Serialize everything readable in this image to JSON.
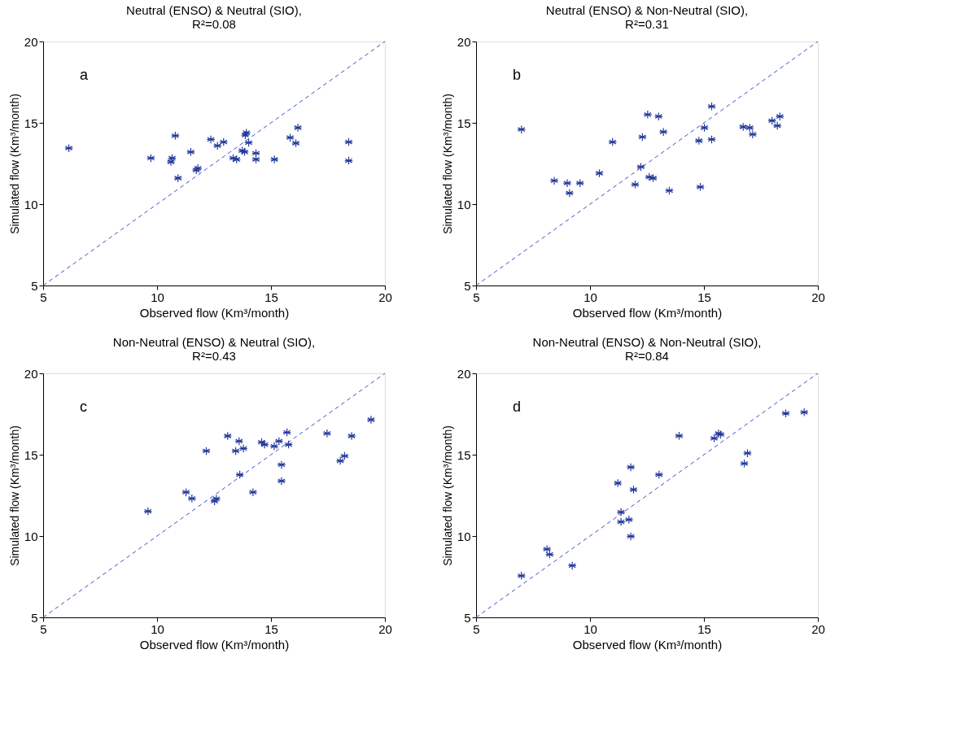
{
  "chart_data": [
    {
      "type": "scatter",
      "title": "Neutral (ENSO) & Neutral (SIO),",
      "subtitle": "R²=0.08",
      "xlabel": "Observed flow (Km³/month)",
      "ylabel": "Simulated flow (Km³/month)",
      "xlim": [
        5,
        20
      ],
      "ylim": [
        5,
        20
      ],
      "xticks": [
        5,
        10,
        15,
        20
      ],
      "yticks": [
        5,
        10,
        15,
        20
      ],
      "grid": false,
      "marker": "cross",
      "annotations": [
        "a"
      ],
      "series": [
        {
          "type": "line",
          "color": "#3d52c4",
          "line_style": "dashed",
          "marker": "none",
          "x": [
            5,
            20
          ],
          "values": [
            5,
            20
          ]
        },
        {
          "color": "#23399c",
          "x": [
            6.13,
            9.73,
            10.8,
            10.66,
            10.61,
            10.92,
            11.48,
            11.72,
            11.79,
            12.36,
            12.65,
            12.92,
            13.34,
            13.49,
            13.74,
            13.84,
            13.87,
            13.92,
            14.02,
            14.34,
            14.34,
            15.15,
            15.84,
            16.09,
            16.18,
            18.41,
            18.41
          ],
          "values": [
            13.44,
            12.83,
            14.21,
            12.83,
            12.6,
            11.6,
            13.21,
            12.09,
            12.21,
            13.98,
            13.59,
            13.82,
            12.83,
            12.75,
            13.29,
            13.21,
            14.24,
            14.39,
            13.78,
            13.13,
            12.75,
            12.75,
            14.09,
            13.75,
            14.7,
            13.82,
            12.67
          ]
        }
      ]
    },
    {
      "type": "scatter",
      "title": "Neutral (ENSO) & Non-Neutral (SIO),",
      "subtitle": "R²=0.31",
      "xlabel": "Observed flow (Km³/month)",
      "ylabel": "Simulated flow (Km³/month)",
      "xlim": [
        5,
        20
      ],
      "ylim": [
        5,
        20
      ],
      "xticks": [
        5,
        10,
        15,
        20
      ],
      "yticks": [
        5,
        10,
        15,
        20
      ],
      "grid": false,
      "marker": "cross",
      "annotations": [
        "b"
      ],
      "series": [
        {
          "type": "line",
          "color": "#3d52c4",
          "line_style": "dashed",
          "marker": "none",
          "x": [
            5,
            20
          ],
          "values": [
            5,
            20
          ]
        },
        {
          "color": "#23399c",
          "x": [
            6.99,
            8.43,
            9.0,
            9.1,
            9.56,
            10.41,
            10.99,
            11.98,
            12.23,
            12.3,
            12.53,
            12.6,
            12.77,
            13.01,
            13.22,
            13.48,
            14.78,
            14.84,
            15.02,
            15.34,
            15.34,
            16.72,
            17.01,
            17.14,
            17.99,
            18.22,
            18.33
          ],
          "values": [
            14.59,
            11.44,
            11.29,
            10.68,
            11.29,
            11.9,
            13.82,
            11.21,
            12.29,
            14.13,
            15.51,
            11.67,
            11.6,
            15.39,
            14.44,
            10.83,
            13.9,
            11.06,
            14.7,
            16.01,
            13.98,
            14.75,
            14.7,
            14.29,
            15.13,
            14.82,
            15.39
          ]
        }
      ]
    },
    {
      "type": "scatter",
      "title": "Non-Neutral (ENSO) & Neutral (SIO),",
      "subtitle": "R²=0.43",
      "xlabel": "Observed flow (Km³/month)",
      "ylabel": "Simulated flow (Km³/month)",
      "xlim": [
        5,
        20
      ],
      "ylim": [
        5,
        20
      ],
      "xticks": [
        5,
        10,
        15,
        20
      ],
      "yticks": [
        5,
        10,
        15,
        20
      ],
      "grid": false,
      "marker": "cross",
      "annotations": [
        "c"
      ],
      "series": [
        {
          "type": "line",
          "color": "#3d52c4",
          "line_style": "dashed",
          "marker": "none",
          "x": [
            5,
            20
          ],
          "values": [
            5,
            20
          ]
        },
        {
          "color": "#23399c",
          "x": [
            9.6,
            11.27,
            11.53,
            12.16,
            12.52,
            12.6,
            13.1,
            13.45,
            13.6,
            13.79,
            13.63,
            14.21,
            14.59,
            14.72,
            15.14,
            15.35,
            15.46,
            15.46,
            15.7,
            15.77,
            17.46,
            18.04,
            18.23,
            18.54,
            19.39
          ],
          "values": [
            11.52,
            12.69,
            12.31,
            15.23,
            12.14,
            12.29,
            16.15,
            15.23,
            15.83,
            15.38,
            13.77,
            12.69,
            15.77,
            15.62,
            15.52,
            15.83,
            14.38,
            13.38,
            16.37,
            15.62,
            16.31,
            14.62,
            14.92,
            16.15,
            17.15
          ]
        }
      ]
    },
    {
      "type": "scatter",
      "title": "Non-Neutral (ENSO) & Non-Neutral (SIO),",
      "subtitle": "R²=0.84",
      "xlabel": "Observed flow (Km³/month)",
      "ylabel": "Simulated flow (Km³/month)",
      "xlim": [
        5,
        20
      ],
      "ylim": [
        5,
        20
      ],
      "xticks": [
        5,
        10,
        15,
        20
      ],
      "yticks": [
        5,
        10,
        15,
        20
      ],
      "grid": false,
      "marker": "cross",
      "annotations": [
        "d"
      ],
      "series": [
        {
          "type": "line",
          "color": "#3d52c4",
          "line_style": "dashed",
          "marker": "none",
          "x": [
            5,
            20
          ],
          "values": [
            5,
            20
          ]
        },
        {
          "color": "#23399c",
          "x": [
            6.99,
            8.11,
            8.23,
            9.22,
            11.22,
            11.36,
            11.36,
            11.71,
            11.79,
            11.79,
            11.91,
            13.03,
            13.91,
            15.45,
            15.64,
            15.73,
            16.77,
            16.91,
            18.59,
            19.4
          ],
          "values": [
            7.56,
            9.19,
            8.87,
            8.18,
            13.25,
            11.47,
            10.87,
            11.01,
            14.23,
            9.98,
            12.85,
            13.77,
            16.16,
            16.01,
            16.3,
            16.24,
            14.46,
            15.09,
            17.54,
            17.61
          ]
        }
      ]
    }
  ]
}
